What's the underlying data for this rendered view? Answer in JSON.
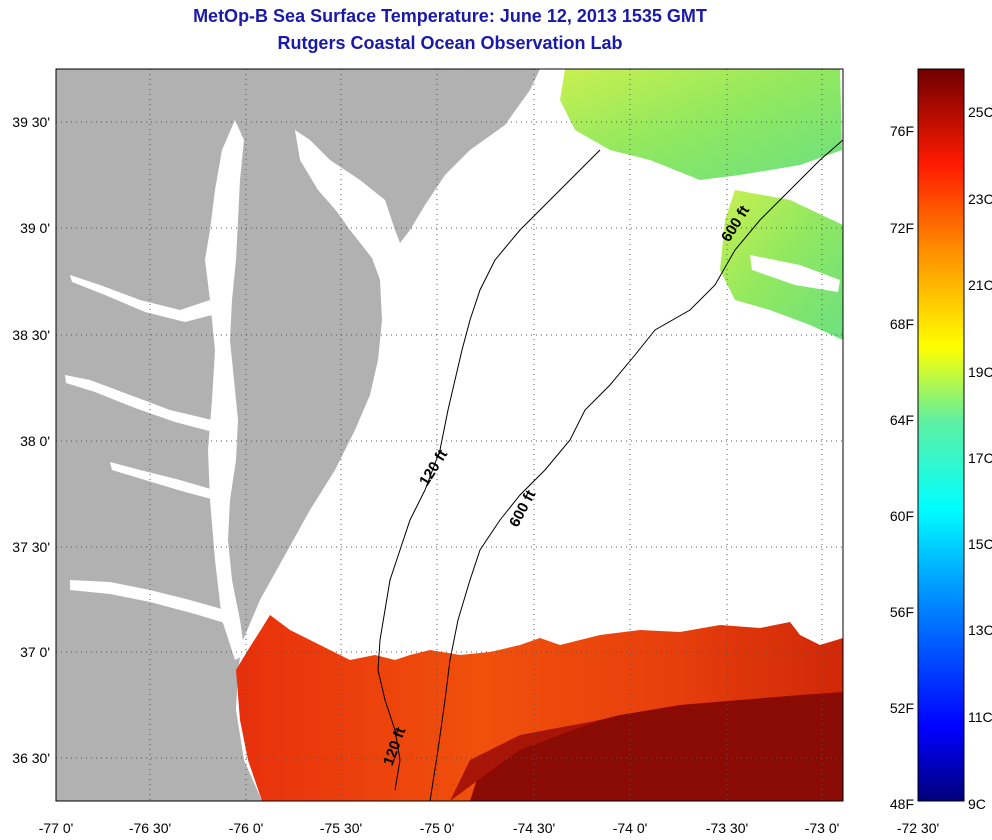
{
  "title": "MetOp-B Sea Surface Temperature:  June 12, 2013 1535 GMT",
  "subtitle": "Rutgers Coastal Ocean Observation Lab",
  "map": {
    "lat_labels": [
      "39 30'",
      "39 0'",
      "38 30'",
      "38 0'",
      "37 30'",
      "37 0'",
      "36 30'"
    ],
    "lon_labels": [
      "-77 0'",
      "-76 30'",
      "-76 0'",
      "-75 30'",
      "-75 0'",
      "-74 30'",
      "-74 0'",
      "-73 30'",
      "-73 0'",
      "-72 30'"
    ],
    "contour_labels": [
      "600 ft",
      "120 ft",
      "600 ft",
      "120 ft"
    ],
    "colors": {
      "land": "#b1b1b1",
      "no_data": "#ffffff",
      "warm_water": "#e8400c",
      "cool_water": "#8ce650"
    }
  },
  "colorbar": {
    "fahrenheit_labels": [
      "76F",
      "72F",
      "68F",
      "64F",
      "60F",
      "56F",
      "52F",
      "48F"
    ],
    "celsius_labels": [
      "25C",
      "23C",
      "21C",
      "19C",
      "17C",
      "15C",
      "13C",
      "11C",
      "9C"
    ]
  }
}
